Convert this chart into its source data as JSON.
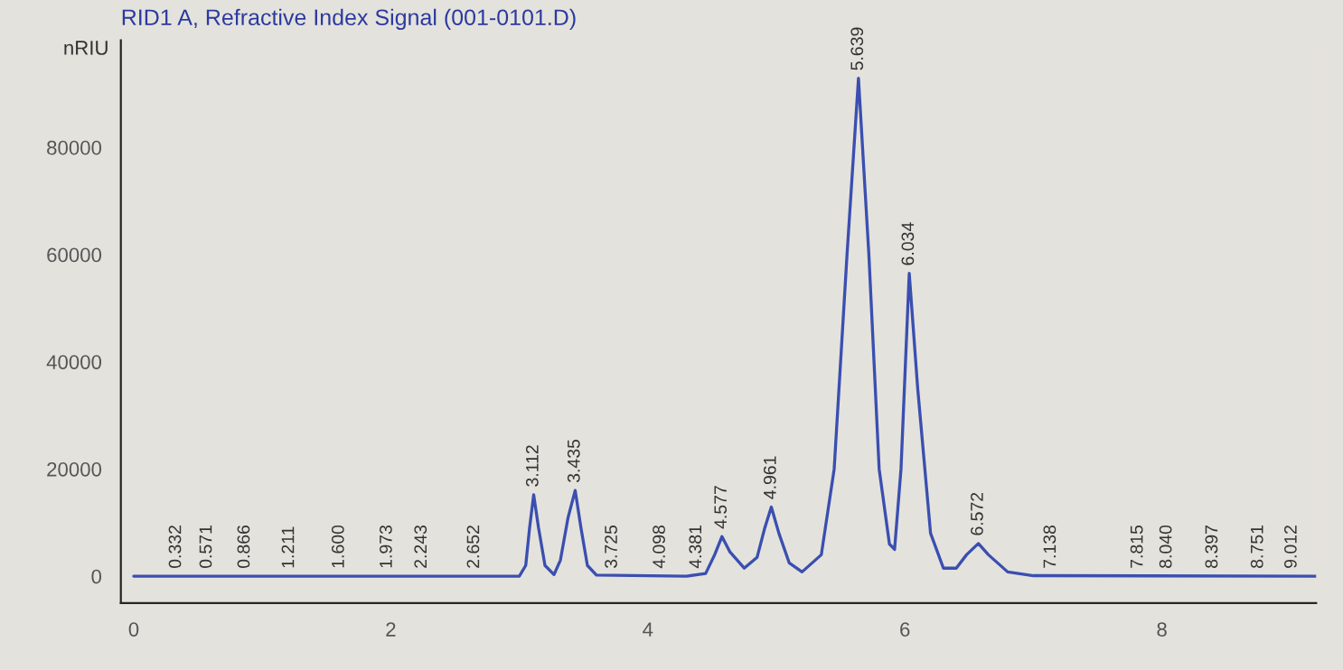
{
  "chart_data": {
    "type": "line",
    "title": "RID1 A, Refractive Index Signal (001-0101.D)",
    "ylabel": "nRIU",
    "xlim": [
      -0.1,
      9.2
    ],
    "xticks": [
      0,
      2,
      4,
      6,
      8
    ],
    "ylim": [
      -5000,
      100000
    ],
    "yticks": [
      0,
      20000,
      40000,
      60000,
      80000
    ],
    "grid": false,
    "legend": false,
    "marker": "none",
    "line_style": "solid",
    "series": [
      {
        "color": "#3a4fb0",
        "x": [
          0,
          3.0,
          3.05,
          3.08,
          3.112,
          3.15,
          3.2,
          3.27,
          3.32,
          3.38,
          3.435,
          3.48,
          3.53,
          3.6,
          4.3,
          4.45,
          4.52,
          4.577,
          4.64,
          4.75,
          4.85,
          4.91,
          4.961,
          5.02,
          5.1,
          5.2,
          5.35,
          5.45,
          5.55,
          5.639,
          5.72,
          5.8,
          5.88,
          5.92,
          5.97,
          6.034,
          6.1,
          6.2,
          6.3,
          6.4,
          6.48,
          6.572,
          6.65,
          6.8,
          7.0,
          9.2
        ],
        "values": [
          0,
          0,
          2000,
          9000,
          15200,
          9000,
          2000,
          300,
          3000,
          11000,
          16000,
          9000,
          2000,
          200,
          0,
          500,
          4000,
          7400,
          4500,
          1500,
          3500,
          9000,
          12900,
          8000,
          2500,
          800,
          4000,
          20000,
          60000,
          92900,
          60000,
          20000,
          6000,
          5000,
          20000,
          56500,
          35000,
          8000,
          1500,
          1500,
          4000,
          6100,
          4000,
          800,
          100,
          0
        ]
      }
    ],
    "annotations": [
      {
        "text": "0.332",
        "x": 0.332,
        "y": 0
      },
      {
        "text": "0.571",
        "x": 0.571,
        "y": 0
      },
      {
        "text": "0.866",
        "x": 0.866,
        "y": 0
      },
      {
        "text": "1.211",
        "x": 1.211,
        "y": 0
      },
      {
        "text": "1.600",
        "x": 1.6,
        "y": 0
      },
      {
        "text": "1.973",
        "x": 1.973,
        "y": 0
      },
      {
        "text": "2.243",
        "x": 2.243,
        "y": 0
      },
      {
        "text": "2.652",
        "x": 2.652,
        "y": 0
      },
      {
        "text": "3.112",
        "x": 3.112,
        "y": 15200
      },
      {
        "text": "3.435",
        "x": 3.435,
        "y": 16000
      },
      {
        "text": "3.725",
        "x": 3.725,
        "y": 0
      },
      {
        "text": "4.098",
        "x": 4.098,
        "y": 0
      },
      {
        "text": "4.381",
        "x": 4.381,
        "y": 0
      },
      {
        "text": "4.577",
        "x": 4.577,
        "y": 7400
      },
      {
        "text": "4.961",
        "x": 4.961,
        "y": 12900
      },
      {
        "text": "5.639",
        "x": 5.639,
        "y": 92900
      },
      {
        "text": "6.034",
        "x": 6.034,
        "y": 56500
      },
      {
        "text": "6.572",
        "x": 6.572,
        "y": 6100
      },
      {
        "text": "7.138",
        "x": 7.138,
        "y": 0
      },
      {
        "text": "7.815",
        "x": 7.815,
        "y": 0
      },
      {
        "text": "8.040",
        "x": 8.04,
        "y": 0
      },
      {
        "text": "8.397",
        "x": 8.397,
        "y": 0
      },
      {
        "text": "8.751",
        "x": 8.751,
        "y": 0
      },
      {
        "text": "9.012",
        "x": 9.012,
        "y": 0
      }
    ]
  }
}
